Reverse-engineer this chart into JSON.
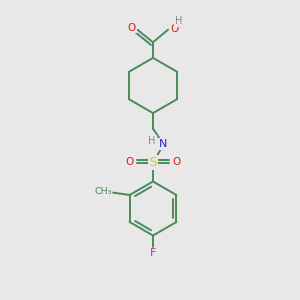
{
  "background_color": "#e8e8e8",
  "bond_color": "#4a8a5a",
  "atom_colors": {
    "O": "#ee1111",
    "N": "#2222ee",
    "S": "#ddcc00",
    "F": "#cc22cc",
    "H": "#888888",
    "C": "#4a8a5a"
  },
  "figsize": [
    3.0,
    3.0
  ],
  "dpi": 100
}
